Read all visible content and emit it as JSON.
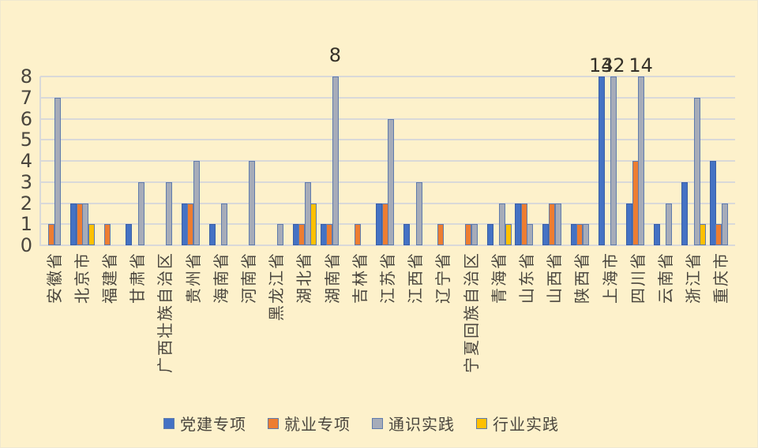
{
  "background_color": "#FDF1CB",
  "gridline_color": "#D9D9D9",
  "text_color": "#4a463e",
  "chart_data": {
    "type": "bar",
    "title": "",
    "xlabel": "",
    "ylabel": "",
    "ylim": [
      0,
      8
    ],
    "ytick_labels": [
      "0",
      "1",
      "2",
      "3",
      "4",
      "5",
      "6",
      "7",
      "8"
    ],
    "grid": true,
    "legend_position": "bottom",
    "categories": [
      "安徽省",
      "北京市",
      "福建省",
      "甘肃省",
      "广西壮族自治区",
      "贵州省",
      "海南省",
      "河南省",
      "黑龙江省",
      "湖北省",
      "湖南省",
      "吉林省",
      "江苏省",
      "江西省",
      "辽宁省",
      "宁夏回族自治区",
      "青海省",
      "山东省",
      "山西省",
      "陕西省",
      "上海市",
      "四川省",
      "云南省",
      "浙江省",
      "重庆市"
    ],
    "series": [
      {
        "name": "党建专项",
        "color": "#4472C4",
        "values": [
          0,
          2,
          0,
          1,
          0,
          2,
          1,
          0,
          0,
          1,
          1,
          0,
          2,
          1,
          0,
          0,
          1,
          2,
          1,
          1,
          14,
          2,
          1,
          3,
          4
        ]
      },
      {
        "name": "就业专项",
        "color": "#ED7D31",
        "values": [
          1,
          2,
          1,
          0,
          0,
          2,
          0,
          0,
          0,
          1,
          1,
          1,
          2,
          0,
          1,
          1,
          0,
          2,
          2,
          1,
          0,
          4,
          0,
          0,
          1
        ]
      },
      {
        "name": "通识实践",
        "color": "#A6ACB9",
        "values": [
          7,
          2,
          0,
          3,
          3,
          4,
          2,
          4,
          1,
          3,
          8,
          0,
          6,
          3,
          0,
          1,
          2,
          1,
          2,
          1,
          32,
          14,
          2,
          7,
          2
        ]
      },
      {
        "name": "行业实践",
        "color": "#FFC000",
        "values": [
          0,
          1,
          0,
          0,
          0,
          0,
          0,
          0,
          0,
          2,
          0,
          0,
          0,
          0,
          0,
          0,
          1,
          0,
          0,
          0,
          0,
          0,
          0,
          1,
          0
        ]
      }
    ],
    "data_labels": [
      {
        "text": "8",
        "category": "湖南省",
        "series": "通识实践"
      },
      {
        "text": "14",
        "category": "上海市",
        "series": "党建专项"
      },
      {
        "text": "32",
        "category": "上海市",
        "series": "通识实践"
      },
      {
        "text": "14",
        "category": "四川省",
        "series": "通识实践"
      }
    ]
  }
}
